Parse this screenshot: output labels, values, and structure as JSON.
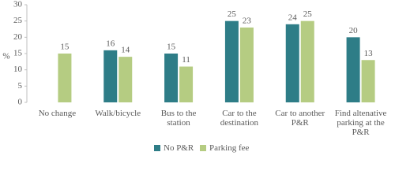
{
  "chart_data": {
    "type": "bar",
    "y_label": "%",
    "categories": [
      "No change",
      "Walk/bicycle",
      "Bus to the station",
      "Car to the destination",
      "Car to another P&R",
      "Find altenative parking at the P&R"
    ],
    "series": [
      {
        "name": "No P&R",
        "color": "#2e7d87",
        "values": [
          null,
          16,
          15,
          25,
          24,
          20
        ]
      },
      {
        "name": "Parking fee",
        "color": "#b5cc82",
        "values": [
          15,
          14,
          11,
          23,
          25,
          13
        ]
      }
    ],
    "ylim": [
      0,
      30
    ],
    "yticks": [
      0,
      5,
      10,
      15,
      20,
      25,
      30
    ],
    "legend": "bottom"
  }
}
